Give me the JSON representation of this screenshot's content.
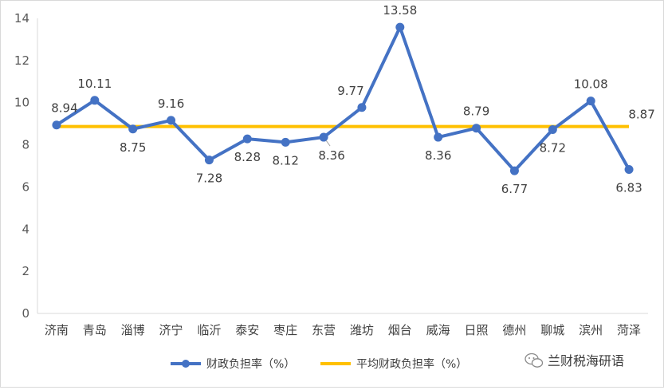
{
  "chart_data": {
    "type": "line",
    "categories": [
      "济南",
      "青岛",
      "淄博",
      "济宁",
      "临沂",
      "泰安",
      "枣庄",
      "东营",
      "潍坊",
      "烟台",
      "威海",
      "日照",
      "德州",
      "聊城",
      "滨州",
      "菏泽"
    ],
    "series": [
      {
        "name": "财政负担率（%）",
        "values": [
          8.94,
          10.11,
          8.75,
          9.16,
          7.28,
          8.28,
          8.12,
          8.36,
          9.77,
          13.58,
          8.36,
          8.79,
          6.77,
          8.72,
          10.08,
          6.83
        ],
        "labels": [
          "8.94",
          "10.11",
          "8.75",
          "9.16",
          "7.28",
          "8.28",
          "8.12",
          "8.36",
          "9.77",
          "13.58",
          "8.36",
          "8.79",
          "6.77",
          "8.72",
          "10.08",
          "6.83"
        ],
        "color": "#4472c4"
      },
      {
        "name": "平均财政负担率（%）",
        "value": 8.87,
        "label": "8.87",
        "color": "#ffc000"
      }
    ],
    "y_ticks": [
      "0",
      "2",
      "4",
      "6",
      "8",
      "10",
      "12",
      "14"
    ],
    "ylim": [
      0,
      14
    ],
    "grid": false,
    "legend_position": "bottom"
  },
  "watermark": {
    "text": "兰财税海研语",
    "icon": "wechat-icon"
  }
}
